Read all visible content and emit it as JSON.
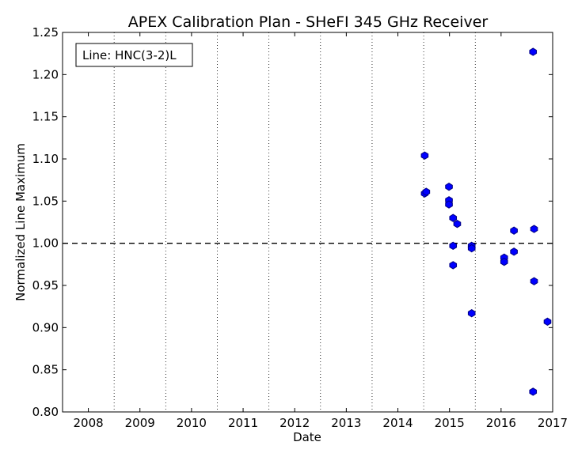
{
  "chart_data": {
    "type": "scatter",
    "title": "APEX Calibration Plan - SHeFI 345 GHz Receiver",
    "xlabel": "Date",
    "ylabel": "Normalized Line Maximum",
    "legend_text": "Line: HNC(3-2)L",
    "legend_position": "top-left",
    "xlim": [
      2007.5,
      2017.0
    ],
    "ylim": [
      0.8,
      1.25
    ],
    "x_ticks": [
      2008,
      2009,
      2010,
      2011,
      2012,
      2013,
      2014,
      2015,
      2016,
      2017
    ],
    "x_tick_labels": [
      "2008",
      "2009",
      "2010",
      "2011",
      "2012",
      "2013",
      "2014",
      "2015",
      "2016",
      "2017"
    ],
    "y_ticks": [
      0.8,
      0.85,
      0.9,
      0.95,
      1.0,
      1.05,
      1.1,
      1.15,
      1.2,
      1.25
    ],
    "y_tick_labels": [
      "0.80",
      "0.85",
      "0.90",
      "0.95",
      "1.00",
      "1.05",
      "1.10",
      "1.15",
      "1.20",
      "1.25"
    ],
    "vertical_grid_dotted_at": [
      2008.5,
      2009.5,
      2010.5,
      2011.5,
      2012.5,
      2013.5,
      2014.5,
      2015.5
    ],
    "reference_line_y": 1.0,
    "marker_color": "#0000ff",
    "marker_edge_color": "#000080",
    "points": [
      {
        "x": 2014.52,
        "y": 1.104
      },
      {
        "x": 2014.52,
        "y": 1.059
      },
      {
        "x": 2014.55,
        "y": 1.061
      },
      {
        "x": 2014.99,
        "y": 1.067
      },
      {
        "x": 2014.99,
        "y": 1.051
      },
      {
        "x": 2014.99,
        "y": 1.046
      },
      {
        "x": 2015.07,
        "y": 1.03
      },
      {
        "x": 2015.15,
        "y": 1.023
      },
      {
        "x": 2015.07,
        "y": 0.997
      },
      {
        "x": 2015.07,
        "y": 0.974
      },
      {
        "x": 2015.43,
        "y": 0.997
      },
      {
        "x": 2015.43,
        "y": 0.994
      },
      {
        "x": 2015.43,
        "y": 0.917
      },
      {
        "x": 2016.06,
        "y": 0.983
      },
      {
        "x": 2016.06,
        "y": 0.978
      },
      {
        "x": 2016.25,
        "y": 1.015
      },
      {
        "x": 2016.25,
        "y": 0.99
      },
      {
        "x": 2016.62,
        "y": 1.227
      },
      {
        "x": 2016.64,
        "y": 1.017
      },
      {
        "x": 2016.64,
        "y": 0.955
      },
      {
        "x": 2016.62,
        "y": 0.824
      },
      {
        "x": 2016.9,
        "y": 0.907
      }
    ]
  }
}
